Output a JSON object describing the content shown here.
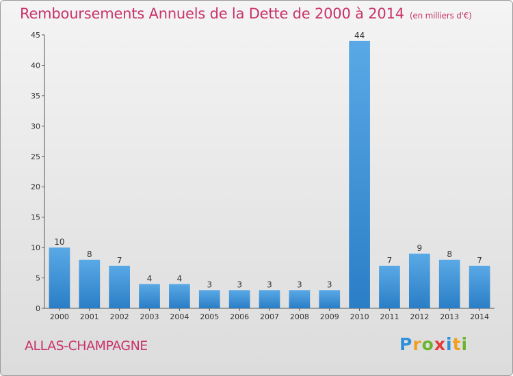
{
  "title": "Remboursements Annuels de la Dette de 2000 à 2014",
  "unit": "(en milliers d'€)",
  "place": "ALLAS-CHAMPAGNE",
  "logo": {
    "letters": [
      "P",
      "r",
      "o",
      "x",
      "i",
      "t",
      "i"
    ],
    "colors": [
      "#2f8fd8",
      "#f0a020",
      "#6ab42e",
      "#e23b3b",
      "#2f8fd8",
      "#f0a020",
      "#6ab42e"
    ]
  },
  "colors": {
    "bar_light": "#5aa9e6",
    "bar_dark": "#2a7ec6",
    "title": "#c8336a"
  },
  "chart_data": {
    "type": "bar",
    "title": "Remboursements Annuels de la Dette de 2000 à 2014",
    "categories": [
      "2000",
      "2001",
      "2002",
      "2003",
      "2004",
      "2005",
      "2006",
      "2007",
      "2008",
      "2009",
      "2010",
      "2011",
      "2012",
      "2013",
      "2014"
    ],
    "values": [
      10,
      8,
      7,
      4,
      4,
      3,
      3,
      3,
      3,
      3,
      44,
      7,
      9,
      8,
      7
    ],
    "ylim": [
      0,
      45
    ],
    "yticks": [
      0,
      5,
      10,
      15,
      20,
      25,
      30,
      35,
      40,
      45
    ],
    "xlabel": "",
    "ylabel": "",
    "grid": false
  }
}
